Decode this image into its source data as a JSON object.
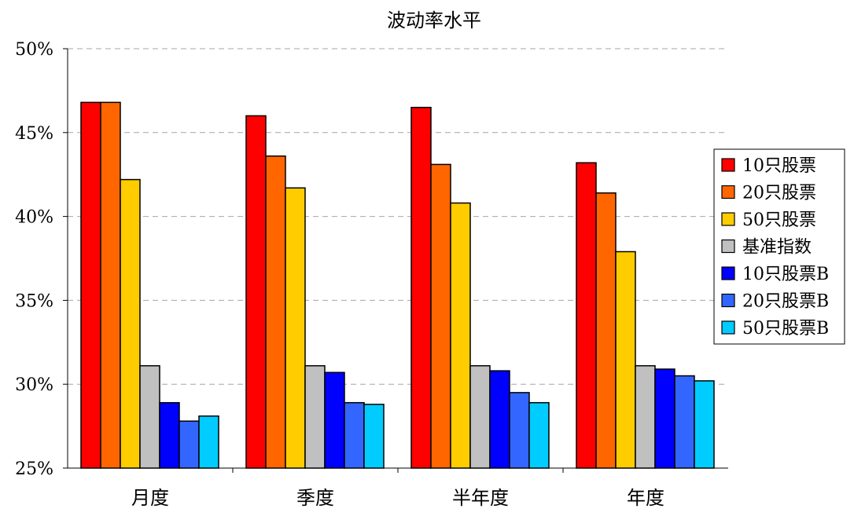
{
  "chart_data": {
    "type": "bar",
    "title": "波动率水平",
    "categories": [
      "月度",
      "季度",
      "半年度",
      "年度"
    ],
    "series": [
      {
        "name": "10只股票",
        "color": "#ff0000",
        "values": [
          46.8,
          46.0,
          46.5,
          43.2
        ]
      },
      {
        "name": "20只股票",
        "color": "#ff6600",
        "values": [
          46.8,
          43.6,
          43.1,
          41.4
        ]
      },
      {
        "name": "50只股票",
        "color": "#ffcc00",
        "values": [
          42.2,
          41.7,
          40.8,
          37.9
        ]
      },
      {
        "name": "基准指数",
        "color": "#c0c0c0",
        "values": [
          31.1,
          31.1,
          31.1,
          31.1
        ]
      },
      {
        "name": "10只股票B",
        "color": "#0000ff",
        "values": [
          28.9,
          30.7,
          30.8,
          30.9
        ]
      },
      {
        "name": "20只股票B",
        "color": "#3366ff",
        "values": [
          27.8,
          28.9,
          29.5,
          30.5
        ]
      },
      {
        "name": "50只股票B",
        "color": "#00ccff",
        "values": [
          28.1,
          28.8,
          28.9,
          30.2
        ]
      }
    ],
    "yticks": [
      "25%",
      "30%",
      "35%",
      "40%",
      "45%",
      "50%"
    ],
    "ylim": [
      25,
      50
    ],
    "xlabel": "",
    "ylabel": "",
    "grid": true,
    "legend_position": "right"
  }
}
